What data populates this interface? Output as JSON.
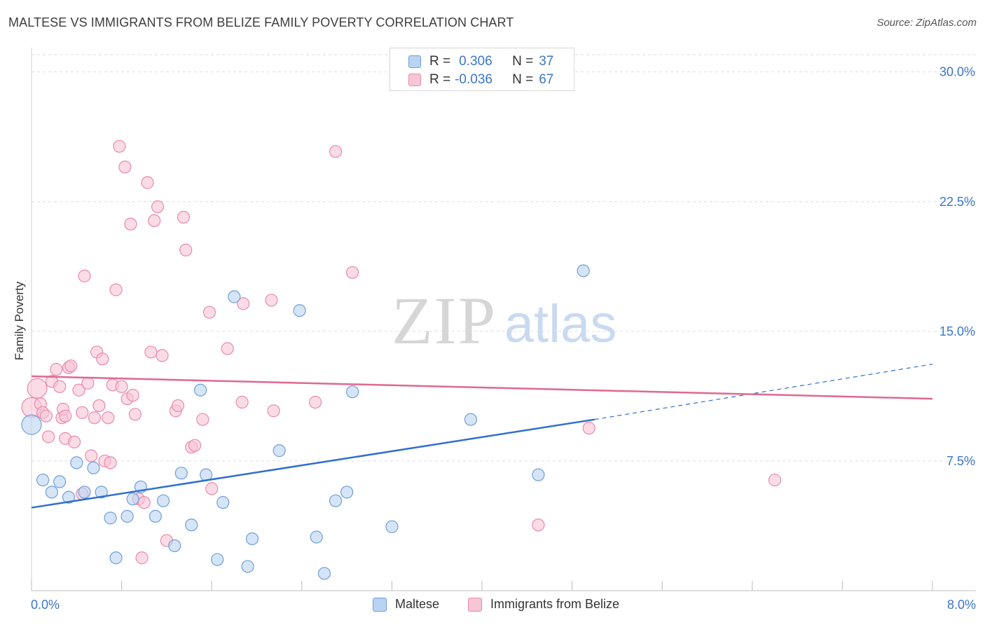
{
  "title": "MALTESE VS IMMIGRANTS FROM BELIZE FAMILY POVERTY CORRELATION CHART",
  "source": "Source: ZipAtlas.com",
  "watermark": {
    "zip": "ZIP",
    "atlas": "atlas"
  },
  "legend": {
    "rows": [
      {
        "r_label": "R =",
        "r_value": "0.306",
        "n_label": "N =",
        "n_value": "37"
      },
      {
        "r_label": "R =",
        "r_value": "-0.036",
        "n_label": "N =",
        "n_value": "67"
      }
    ]
  },
  "colors": {
    "maltese_fill": "#b9d3f2",
    "maltese_stroke": "#6f9fd8",
    "maltese_line": "#2f6fcc",
    "belize_fill": "#f8c5d5",
    "belize_stroke": "#e98aa9",
    "belize_line": "#e0688e",
    "accent_text": "#3a76cc",
    "grid": "#dddddd"
  },
  "chart_data": {
    "type": "scatter",
    "title": "MALTESE VS IMMIGRANTS FROM BELIZE FAMILY POVERTY CORRELATION CHART",
    "xlabel": "",
    "ylabel": "Family Poverty",
    "xlim": [
      0,
      8
    ],
    "ylim": [
      0,
      31
    ],
    "x_tick_labels": [
      "0.0%",
      "8.0%"
    ],
    "y_ticks": [
      7.5,
      15,
      22.5,
      30
    ],
    "y_tick_labels": [
      "7.5%",
      "15.0%",
      "22.5%",
      "30.0%"
    ],
    "grid": true,
    "legend_position": "top-center",
    "series": [
      {
        "name": "Maltese",
        "stats": {
          "R": 0.306,
          "N": 37
        },
        "trend": {
          "x": [
            0,
            5.0
          ],
          "y": [
            4.8,
            9.9
          ],
          "extended_to": [
            8.0,
            13.1
          ]
        },
        "points": [
          {
            "x": 0.0,
            "y": 9.6,
            "big": true
          },
          {
            "x": 0.1,
            "y": 6.4
          },
          {
            "x": 0.18,
            "y": 5.7
          },
          {
            "x": 0.25,
            "y": 6.3
          },
          {
            "x": 0.33,
            "y": 5.4
          },
          {
            "x": 0.4,
            "y": 7.4
          },
          {
            "x": 0.47,
            "y": 5.7
          },
          {
            "x": 0.55,
            "y": 7.1
          },
          {
            "x": 0.62,
            "y": 5.7
          },
          {
            "x": 0.7,
            "y": 4.2
          },
          {
            "x": 0.75,
            "y": 1.9
          },
          {
            "x": 0.85,
            "y": 4.3
          },
          {
            "x": 0.9,
            "y": 5.3
          },
          {
            "x": 0.97,
            "y": 6.0
          },
          {
            "x": 1.1,
            "y": 4.3
          },
          {
            "x": 1.17,
            "y": 5.2
          },
          {
            "x": 1.27,
            "y": 2.6
          },
          {
            "x": 1.33,
            "y": 6.8
          },
          {
            "x": 1.42,
            "y": 3.8
          },
          {
            "x": 1.5,
            "y": 11.6
          },
          {
            "x": 1.55,
            "y": 6.7
          },
          {
            "x": 1.65,
            "y": 1.8
          },
          {
            "x": 1.7,
            "y": 5.1
          },
          {
            "x": 1.8,
            "y": 17.0
          },
          {
            "x": 1.92,
            "y": 1.4
          },
          {
            "x": 1.96,
            "y": 3.0
          },
          {
            "x": 2.2,
            "y": 8.1
          },
          {
            "x": 2.38,
            "y": 16.2
          },
          {
            "x": 2.53,
            "y": 3.1
          },
          {
            "x": 2.6,
            "y": 1.0
          },
          {
            "x": 2.7,
            "y": 5.2
          },
          {
            "x": 2.8,
            "y": 5.7
          },
          {
            "x": 2.85,
            "y": 11.5
          },
          {
            "x": 3.2,
            "y": 3.7
          },
          {
            "x": 3.9,
            "y": 9.9
          },
          {
            "x": 4.5,
            "y": 6.7
          },
          {
            "x": 4.9,
            "y": 18.5
          }
        ]
      },
      {
        "name": "Immigrants from Belize",
        "stats": {
          "R": -0.036,
          "N": 67
        },
        "trend": {
          "x": [
            0,
            8.0
          ],
          "y": [
            12.4,
            11.1
          ]
        },
        "points": [
          {
            "x": 0.0,
            "y": 10.6,
            "big": true
          },
          {
            "x": 0.05,
            "y": 11.7,
            "big": true
          },
          {
            "x": 0.08,
            "y": 10.8
          },
          {
            "x": 0.1,
            "y": 10.3
          },
          {
            "x": 0.13,
            "y": 10.1
          },
          {
            "x": 0.15,
            "y": 8.9
          },
          {
            "x": 0.18,
            "y": 12.1
          },
          {
            "x": 0.22,
            "y": 12.8
          },
          {
            "x": 0.25,
            "y": 11.8
          },
          {
            "x": 0.27,
            "y": 10.0
          },
          {
            "x": 0.28,
            "y": 10.5
          },
          {
            "x": 0.3,
            "y": 8.8
          },
          {
            "x": 0.33,
            "y": 12.9
          },
          {
            "x": 0.35,
            "y": 13.0
          },
          {
            "x": 0.38,
            "y": 8.6
          },
          {
            "x": 0.42,
            "y": 11.6
          },
          {
            "x": 0.45,
            "y": 10.3
          },
          {
            "x": 0.47,
            "y": 18.2
          },
          {
            "x": 0.5,
            "y": 12.0
          },
          {
            "x": 0.53,
            "y": 7.8
          },
          {
            "x": 0.56,
            "y": 10.0
          },
          {
            "x": 0.58,
            "y": 13.8
          },
          {
            "x": 0.6,
            "y": 10.7
          },
          {
            "x": 0.63,
            "y": 13.4
          },
          {
            "x": 0.65,
            "y": 7.5
          },
          {
            "x": 0.68,
            "y": 10.0
          },
          {
            "x": 0.7,
            "y": 7.4
          },
          {
            "x": 0.72,
            "y": 11.9
          },
          {
            "x": 0.75,
            "y": 17.4
          },
          {
            "x": 0.78,
            "y": 25.7
          },
          {
            "x": 0.8,
            "y": 11.8
          },
          {
            "x": 0.83,
            "y": 24.5
          },
          {
            "x": 0.85,
            "y": 11.1
          },
          {
            "x": 0.88,
            "y": 21.2
          },
          {
            "x": 0.9,
            "y": 11.3
          },
          {
            "x": 0.92,
            "y": 10.2
          },
          {
            "x": 0.95,
            "y": 5.3
          },
          {
            "x": 0.98,
            "y": 1.9
          },
          {
            "x": 1.0,
            "y": 5.1
          },
          {
            "x": 1.03,
            "y": 23.6
          },
          {
            "x": 1.06,
            "y": 13.8
          },
          {
            "x": 1.09,
            "y": 21.4
          },
          {
            "x": 1.12,
            "y": 22.2
          },
          {
            "x": 1.16,
            "y": 13.6
          },
          {
            "x": 1.2,
            "y": 2.9
          },
          {
            "x": 1.28,
            "y": 10.4
          },
          {
            "x": 1.3,
            "y": 10.7
          },
          {
            "x": 1.35,
            "y": 21.6
          },
          {
            "x": 1.37,
            "y": 19.7
          },
          {
            "x": 1.42,
            "y": 8.3
          },
          {
            "x": 1.45,
            "y": 8.4
          },
          {
            "x": 1.52,
            "y": 9.9
          },
          {
            "x": 1.58,
            "y": 16.1
          },
          {
            "x": 1.6,
            "y": 5.9
          },
          {
            "x": 1.74,
            "y": 14.0
          },
          {
            "x": 1.87,
            "y": 10.9
          },
          {
            "x": 1.88,
            "y": 16.6
          },
          {
            "x": 2.13,
            "y": 16.8
          },
          {
            "x": 2.15,
            "y": 10.4
          },
          {
            "x": 2.52,
            "y": 10.9
          },
          {
            "x": 2.7,
            "y": 25.4
          },
          {
            "x": 2.85,
            "y": 18.4
          },
          {
            "x": 4.5,
            "y": 3.8
          },
          {
            "x": 4.95,
            "y": 9.4
          },
          {
            "x": 6.6,
            "y": 6.4
          },
          {
            "x": 0.3,
            "y": 10.1
          },
          {
            "x": 0.45,
            "y": 5.6
          }
        ]
      }
    ]
  }
}
